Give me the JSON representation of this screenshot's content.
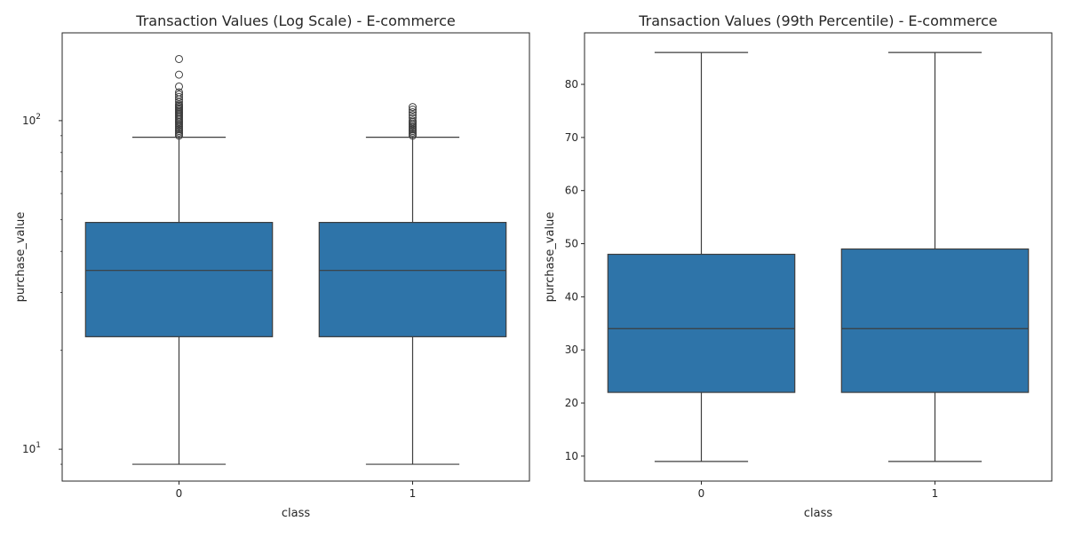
{
  "chart_data": [
    {
      "type": "box",
      "title": "Transaction Values (Log Scale) - E-commerce",
      "xlabel": "class",
      "ylabel": "purchase_value",
      "yscale": "log",
      "ylim": [
        8.0,
        185
      ],
      "categories": [
        "0",
        "1"
      ],
      "y_ticks": [
        {
          "value": 10,
          "base": "10",
          "exp": "1"
        },
        {
          "value": 100,
          "base": "10",
          "exp": "2"
        }
      ],
      "box_color": "#2e74a9",
      "boxes": [
        {
          "category": "0",
          "whisker_low": 9,
          "q1": 22,
          "median": 35,
          "q3": 49,
          "whisker_high": 89,
          "outliers": [
            90,
            91,
            92,
            93,
            94,
            95,
            96,
            97,
            98,
            99,
            100,
            101,
            102,
            103,
            104,
            105,
            106,
            107,
            108,
            109,
            110,
            111,
            112,
            114,
            116,
            118,
            120,
            122,
            127,
            138,
            154
          ]
        },
        {
          "category": "1",
          "whisker_low": 9,
          "q1": 22,
          "median": 35,
          "q3": 49,
          "whisker_high": 89,
          "outliers": [
            90,
            91,
            92,
            93,
            94,
            95,
            96,
            97,
            98,
            99,
            100,
            102,
            104,
            106,
            108,
            110
          ]
        }
      ]
    },
    {
      "type": "box",
      "title": "Transaction Values (99th Percentile) - E-commerce",
      "xlabel": "class",
      "ylabel": "purchase_value",
      "yscale": "linear",
      "ylim": [
        5.3,
        89.7
      ],
      "categories": [
        "0",
        "1"
      ],
      "y_ticks": [
        10,
        20,
        30,
        40,
        50,
        60,
        70,
        80
      ],
      "box_color": "#2e74a9",
      "boxes": [
        {
          "category": "0",
          "whisker_low": 9,
          "q1": 22,
          "median": 34,
          "q3": 48,
          "whisker_high": 86,
          "outliers": []
        },
        {
          "category": "1",
          "whisker_low": 9,
          "q1": 22,
          "median": 34,
          "q3": 49,
          "whisker_high": 86,
          "outliers": []
        }
      ]
    }
  ]
}
